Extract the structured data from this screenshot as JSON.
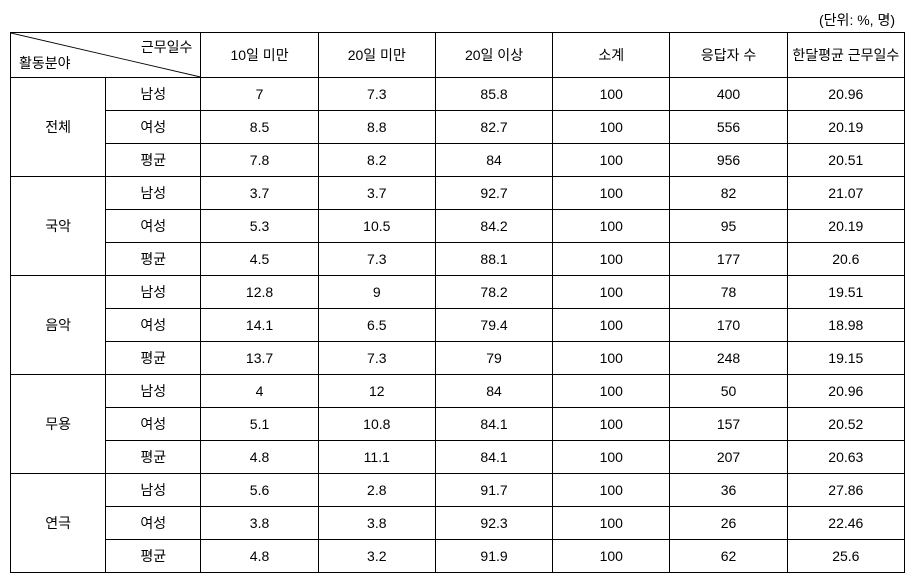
{
  "unit_label": "(단위: %, 명)",
  "header": {
    "diag_top": "근무일수",
    "diag_bottom": "활동분야",
    "cols": [
      "10일\n미만",
      "20일\n미만",
      "20일\n이상",
      "소계",
      "응답자\n수",
      "한달평균\n근무일수"
    ]
  },
  "groups": [
    {
      "name": "전체",
      "rows": [
        {
          "label": "남성",
          "v": [
            "7",
            "7.3",
            "85.8",
            "100",
            "400",
            "20.96"
          ]
        },
        {
          "label": "여성",
          "v": [
            "8.5",
            "8.8",
            "82.7",
            "100",
            "556",
            "20.19"
          ]
        },
        {
          "label": "평균",
          "v": [
            "7.8",
            "8.2",
            "84",
            "100",
            "956",
            "20.51"
          ]
        }
      ]
    },
    {
      "name": "국악",
      "rows": [
        {
          "label": "남성",
          "v": [
            "3.7",
            "3.7",
            "92.7",
            "100",
            "82",
            "21.07"
          ]
        },
        {
          "label": "여성",
          "v": [
            "5.3",
            "10.5",
            "84.2",
            "100",
            "95",
            "20.19"
          ]
        },
        {
          "label": "평균",
          "v": [
            "4.5",
            "7.3",
            "88.1",
            "100",
            "177",
            "20.6"
          ]
        }
      ]
    },
    {
      "name": "음악",
      "rows": [
        {
          "label": "남성",
          "v": [
            "12.8",
            "9",
            "78.2",
            "100",
            "78",
            "19.51"
          ]
        },
        {
          "label": "여성",
          "v": [
            "14.1",
            "6.5",
            "79.4",
            "100",
            "170",
            "18.98"
          ]
        },
        {
          "label": "평균",
          "v": [
            "13.7",
            "7.3",
            "79",
            "100",
            "248",
            "19.15"
          ]
        }
      ]
    },
    {
      "name": "무용",
      "rows": [
        {
          "label": "남성",
          "v": [
            "4",
            "12",
            "84",
            "100",
            "50",
            "20.96"
          ]
        },
        {
          "label": "여성",
          "v": [
            "5.1",
            "10.8",
            "84.1",
            "100",
            "157",
            "20.52"
          ]
        },
        {
          "label": "평균",
          "v": [
            "4.8",
            "11.1",
            "84.1",
            "100",
            "207",
            "20.63"
          ]
        }
      ]
    },
    {
      "name": "연극",
      "rows": [
        {
          "label": "남성",
          "v": [
            "5.6",
            "2.8",
            "91.7",
            "100",
            "36",
            "27.86"
          ]
        },
        {
          "label": "여성",
          "v": [
            "3.8",
            "3.8",
            "92.3",
            "100",
            "26",
            "22.46"
          ]
        },
        {
          "label": "평균",
          "v": [
            "4.8",
            "3.2",
            "91.9",
            "100",
            "62",
            "25.6"
          ]
        }
      ]
    }
  ]
}
